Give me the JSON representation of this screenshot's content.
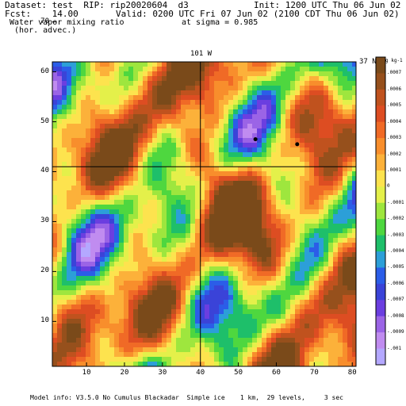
{
  "header": {
    "line1_left": "Dataset: test  RIP: rip20020604  d3",
    "line1_right": "Init: 1200 UTC Thu 06 Jun 02",
    "line2_left": "Fcst:    14.00",
    "line2_right": "Valid: 0200 UTC Fri 07 Jun 02 (2100 CDT Thu 06 Jun 02)",
    "line3_left": " Water vapor mixing ratio",
    "line3_right": "at sigma = 0.985",
    "line4_left": "  (hor. advec.)"
  },
  "map": {
    "top_label": "101 W",
    "right_label": "37 N",
    "unit_label": "g kg-1",
    "x_ticks": [
      "10",
      "20",
      "30",
      "40",
      "50",
      "60",
      "70",
      "80"
    ],
    "y_ticks": [
      "10",
      "20",
      "30",
      "40",
      "50",
      "60",
      "70"
    ],
    "x_range": [
      1,
      81
    ],
    "y_range": [
      1,
      62
    ],
    "meridian_x": 40,
    "parallel_y": 41,
    "markers": [
      {
        "name": "marker-1",
        "x": 54.5,
        "y": 46.5
      },
      {
        "name": "marker-2",
        "x": 65.5,
        "y": 45.5
      }
    ]
  },
  "colorbar": {
    "labels": [
      ".0007",
      ".0006",
      ".0005",
      ".0004",
      ".0003",
      ".0002",
      ".0001",
      "0",
      "-.0001",
      "-.0002",
      "-.0003",
      "-.0004",
      "-.0005",
      "-.0006",
      "-.0007",
      "-.0008",
      "-.0009",
      "-.001"
    ],
    "colors": [
      "#7a4a1a",
      "#96501c",
      "#c0521e",
      "#dd4d22",
      "#f06a26",
      "#f88e2c",
      "#fcb13a",
      "#fde34e",
      "#e4f04a",
      "#9ee63e",
      "#4ed73f",
      "#1ebf6a",
      "#2c9fd8",
      "#2b5de8",
      "#3a43d8",
      "#6b3ee0",
      "#9b64e6",
      "#c08cf0",
      "#b4a8ff"
    ]
  },
  "footer": {
    "text": "Model info: V3.5.0 No Cumulus Blackadar  Simple ice    1 km,  29 levels,     3 sec"
  }
}
